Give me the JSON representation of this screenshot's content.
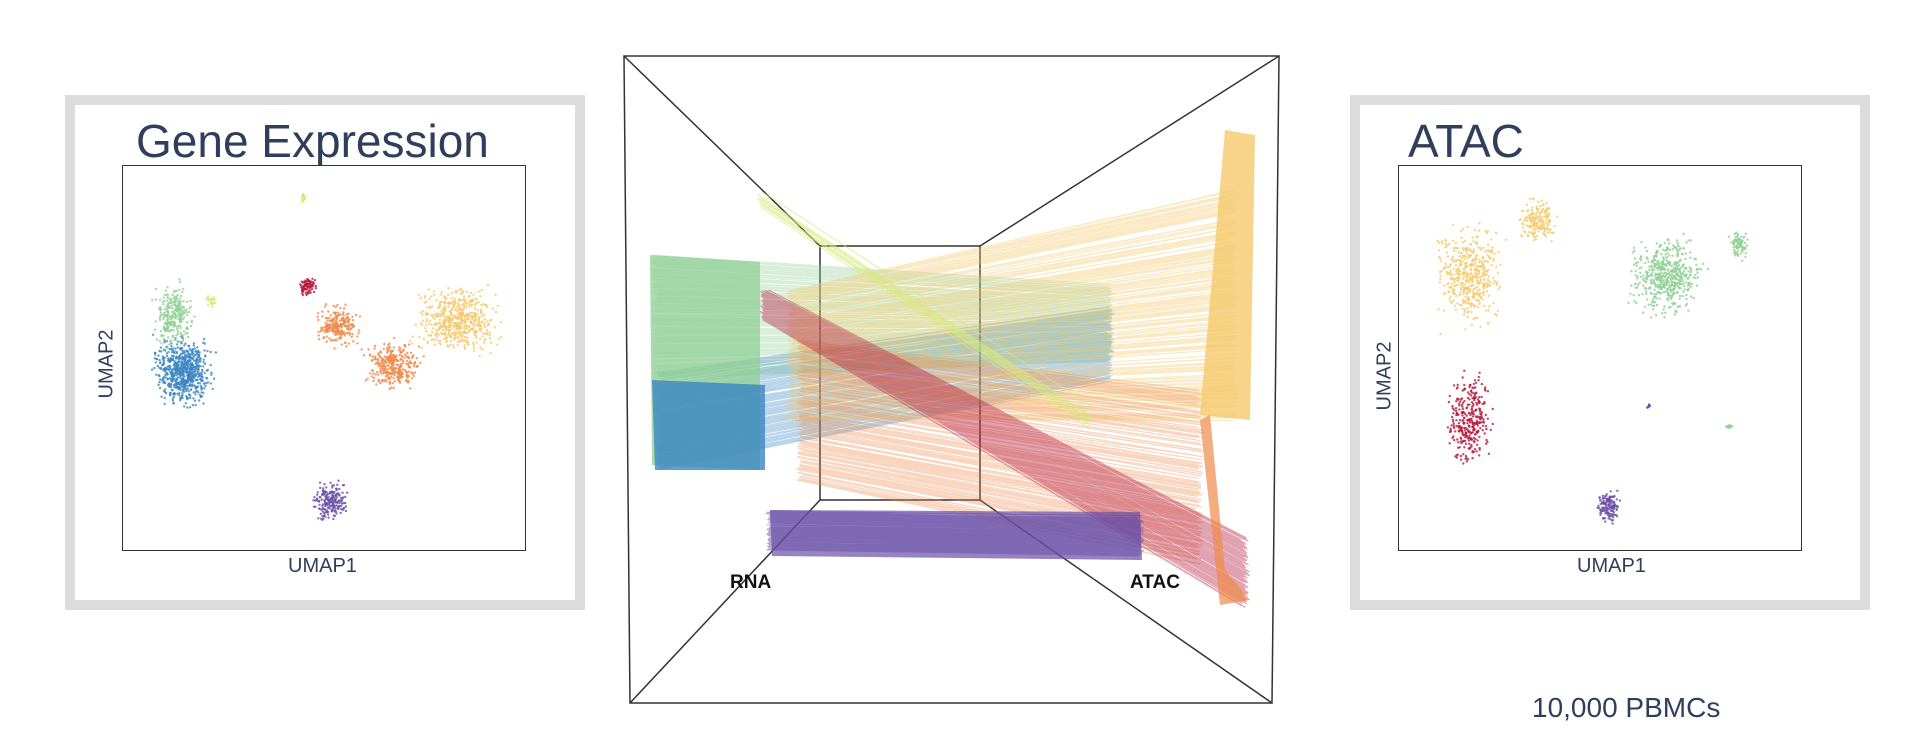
{
  "left_panel": {
    "title": "Gene Expression",
    "xlabel": "UMAP1",
    "ylabel": "UMAP2"
  },
  "right_panel": {
    "title": "ATAC",
    "xlabel": "UMAP1",
    "ylabel": "UMAP2"
  },
  "center_panel": {
    "left_label": "RNA",
    "right_label": "ATAC"
  },
  "caption": "10,000 PBMCs",
  "colors": {
    "yellow": "#f5c96b",
    "orange": "#ef8a4a",
    "red": "#b5173d",
    "green": "#8fcf94",
    "blue": "#3b86c2",
    "purple": "#6a4fa6",
    "lime": "#d6ea7a",
    "text": "#2f3e5c",
    "border": "#dcdcdc"
  }
}
